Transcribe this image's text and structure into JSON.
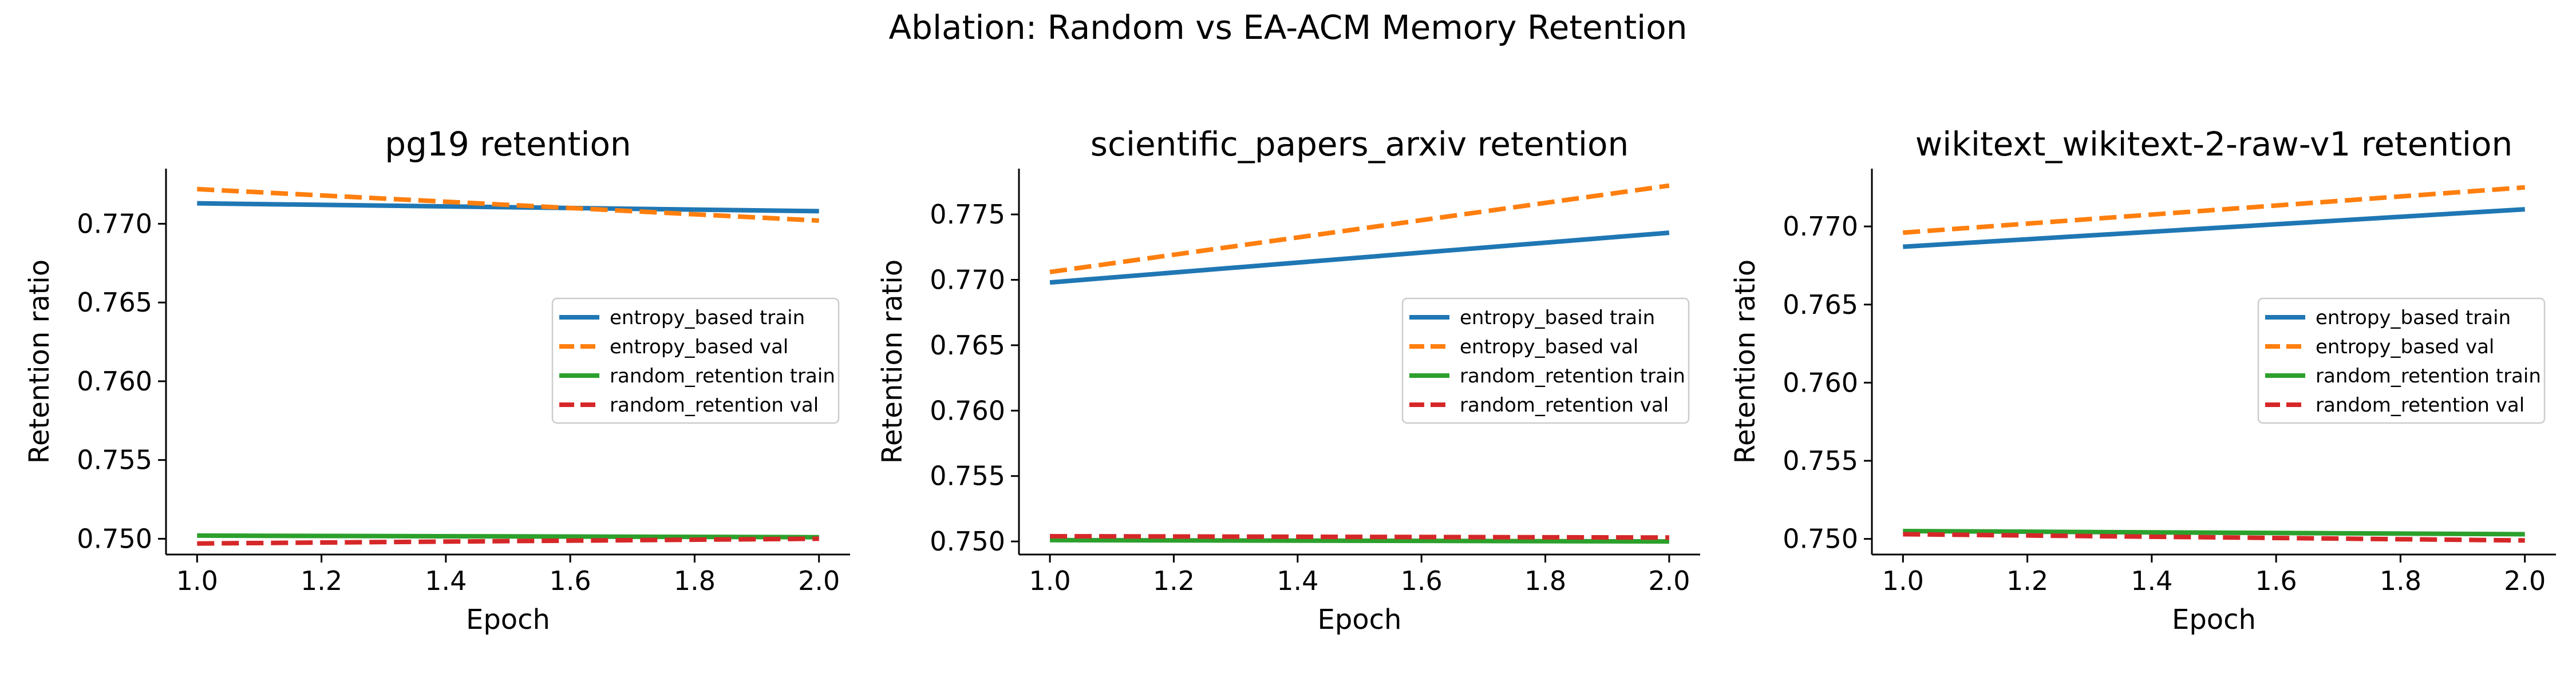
{
  "figure": {
    "title": "Ablation: Random vs EA-ACM Memory Retention"
  },
  "colors": {
    "entropy_based train": "#1f77b4",
    "entropy_based val": "#ff7f0e",
    "random_retention train": "#2ca02c",
    "random_retention val": "#d62728"
  },
  "chart_data": [
    {
      "type": "line",
      "title": "pg19 retention",
      "xlabel": "Epoch",
      "ylabel": "Retention ratio",
      "xlim": [
        0.95,
        2.05
      ],
      "ylim": [
        0.749,
        0.7735
      ],
      "xticks": [
        1.0,
        1.2,
        1.4,
        1.6,
        1.8,
        2.0
      ],
      "yticks": [
        0.75,
        0.755,
        0.76,
        0.765,
        0.77
      ],
      "grid": false,
      "legend": "center-right",
      "x": [
        1.0,
        2.0
      ],
      "series": [
        {
          "name": "entropy_based train",
          "values": [
            0.7713,
            0.7708
          ],
          "style": "solid"
        },
        {
          "name": "entropy_based val",
          "values": [
            0.7722,
            0.7702
          ],
          "style": "dashed"
        },
        {
          "name": "random_retention train",
          "values": [
            0.7502,
            0.7501
          ],
          "style": "solid"
        },
        {
          "name": "random_retention val",
          "values": [
            0.7497,
            0.75
          ],
          "style": "dashed"
        }
      ]
    },
    {
      "type": "line",
      "title": "scientific_papers_arxiv retention",
      "xlabel": "Epoch",
      "ylabel": "Retention ratio",
      "xlim": [
        0.95,
        2.05
      ],
      "ylim": [
        0.749,
        0.7785
      ],
      "xticks": [
        1.0,
        1.2,
        1.4,
        1.6,
        1.8,
        2.0
      ],
      "yticks": [
        0.75,
        0.755,
        0.76,
        0.765,
        0.77,
        0.775
      ],
      "grid": false,
      "legend": "center-right",
      "x": [
        1.0,
        2.0
      ],
      "series": [
        {
          "name": "entropy_based train",
          "values": [
            0.7698,
            0.7736
          ],
          "style": "solid"
        },
        {
          "name": "entropy_based val",
          "values": [
            0.7706,
            0.7772
          ],
          "style": "dashed"
        },
        {
          "name": "random_retention train",
          "values": [
            0.7501,
            0.75
          ],
          "style": "solid"
        },
        {
          "name": "random_retention val",
          "values": [
            0.7504,
            0.7503
          ],
          "style": "dashed"
        }
      ]
    },
    {
      "type": "line",
      "title": "wikitext_wikitext-2-raw-v1 retention",
      "xlabel": "Epoch",
      "ylabel": "Retention ratio",
      "xlim": [
        0.95,
        2.05
      ],
      "ylim": [
        0.749,
        0.7737
      ],
      "xticks": [
        1.0,
        1.2,
        1.4,
        1.6,
        1.8,
        2.0
      ],
      "yticks": [
        0.75,
        0.755,
        0.76,
        0.765,
        0.77
      ],
      "grid": false,
      "legend": "center-right",
      "x": [
        1.0,
        2.0
      ],
      "series": [
        {
          "name": "entropy_based train",
          "values": [
            0.7687,
            0.7711
          ],
          "style": "solid"
        },
        {
          "name": "entropy_based val",
          "values": [
            0.7696,
            0.7725
          ],
          "style": "dashed"
        },
        {
          "name": "random_retention train",
          "values": [
            0.7505,
            0.7503
          ],
          "style": "solid"
        },
        {
          "name": "random_retention val",
          "values": [
            0.7503,
            0.7499
          ],
          "style": "dashed"
        }
      ]
    }
  ]
}
